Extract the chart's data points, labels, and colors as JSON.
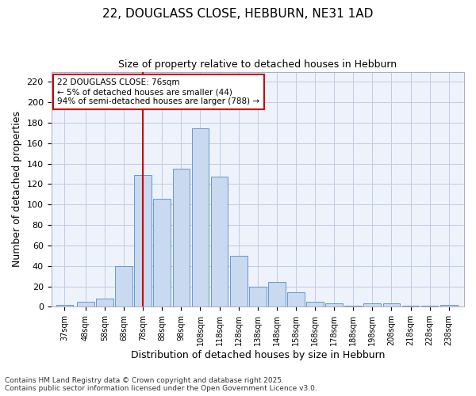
{
  "title": "22, DOUGLASS CLOSE, HEBBURN, NE31 1AD",
  "subtitle": "Size of property relative to detached houses in Hebburn",
  "xlabel": "Distribution of detached houses by size in Hebburn",
  "ylabel": "Number of detached properties",
  "bar_labels": [
    "37sqm",
    "48sqm",
    "58sqm",
    "68sqm",
    "78sqm",
    "88sqm",
    "98sqm",
    "108sqm",
    "118sqm",
    "128sqm",
    "138sqm",
    "148sqm",
    "158sqm",
    "168sqm",
    "178sqm",
    "188sqm",
    "198sqm",
    "208sqm",
    "218sqm",
    "228sqm",
    "238sqm"
  ],
  "bar_values": [
    2,
    5,
    8,
    40,
    129,
    106,
    135,
    175,
    127,
    50,
    20,
    24,
    14,
    5,
    3,
    1,
    3,
    3,
    1,
    1,
    2
  ],
  "bar_color": "#c9d9f0",
  "bar_edge_color": "#6699cc",
  "vline_x": 78,
  "vline_color": "#cc0000",
  "annotation_text": "22 DOUGLASS CLOSE: 76sqm\n← 5% of detached houses are smaller (44)\n94% of semi-detached houses are larger (788) →",
  "annotation_box_color": "#ffffff",
  "annotation_box_edge": "#cc0000",
  "ylim": [
    0,
    230
  ],
  "yticks": [
    0,
    20,
    40,
    60,
    80,
    100,
    120,
    140,
    160,
    180,
    200,
    220
  ],
  "footnote": "Contains HM Land Registry data © Crown copyright and database right 2025.\nContains public sector information licensed under the Open Government Licence v3.0.",
  "bg_color": "#ffffff",
  "plot_bg_color": "#eef2fb",
  "grid_color": "#c0cce0"
}
